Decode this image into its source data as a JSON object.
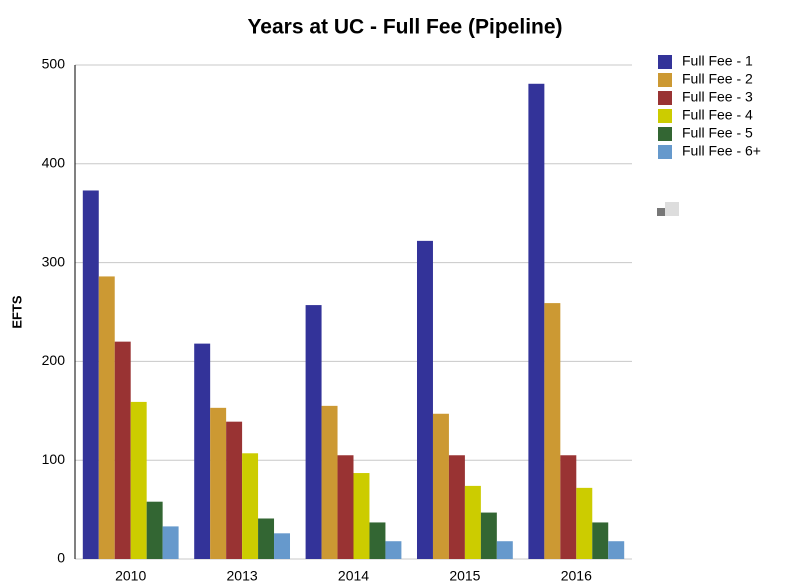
{
  "chart_data": {
    "type": "bar",
    "title": "Years at UC - Full Fee (Pipeline)",
    "y_label": "EFTS",
    "categories": [
      "2010",
      "2013",
      "2014",
      "2015",
      "2016"
    ],
    "series": [
      {
        "name": "Full Fee - 1",
        "color": "#333399",
        "values": [
          373,
          218,
          257,
          322,
          481
        ]
      },
      {
        "name": "Full Fee - 2",
        "color": "#cc9933",
        "values": [
          286,
          153,
          155,
          147,
          259
        ]
      },
      {
        "name": "Full Fee - 3",
        "color": "#993333",
        "values": [
          220,
          139,
          105,
          105,
          105
        ]
      },
      {
        "name": "Full Fee - 4",
        "color": "#cccc00",
        "values": [
          159,
          107,
          87,
          74,
          72
        ]
      },
      {
        "name": "Full Fee - 5",
        "color": "#336633",
        "values": [
          58,
          41,
          37,
          47,
          37
        ]
      },
      {
        "name": "Full Fee - 6+",
        "color": "#6699cc",
        "values": [
          33,
          26,
          18,
          18,
          18
        ]
      }
    ],
    "ylim": [
      0,
      500
    ],
    "yticks": [
      0,
      100,
      200,
      300,
      400,
      500
    ],
    "grid": true,
    "legend": "right"
  }
}
